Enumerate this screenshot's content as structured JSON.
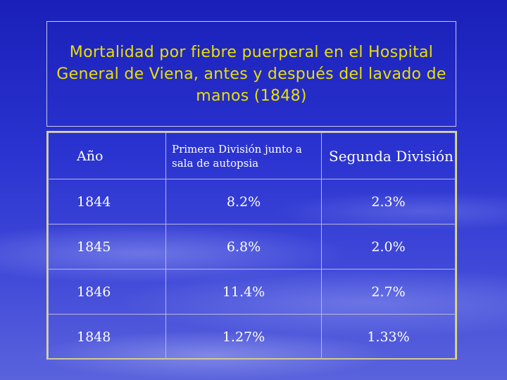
{
  "title": "Mortalidad por fiebre puerperal en el Hospital General de Viena, antes y después del lavado de manos (1848)",
  "table": {
    "headers": [
      "Año",
      "Primera División junto a sala de autopsia",
      "Segunda División"
    ],
    "rows": [
      {
        "year": "1844",
        "first": "8.2%",
        "second": "2.3%"
      },
      {
        "year": "1845",
        "first": "6.8%",
        "second": "2.0%"
      },
      {
        "year": "1846",
        "first": "11.4%",
        "second": "2.7%"
      },
      {
        "year": "1848",
        "first": "1.27%",
        "second": "1.33%"
      }
    ]
  },
  "colors": {
    "title": "#e8e000",
    "text": "#ffffff",
    "background": "#2a33d0"
  }
}
